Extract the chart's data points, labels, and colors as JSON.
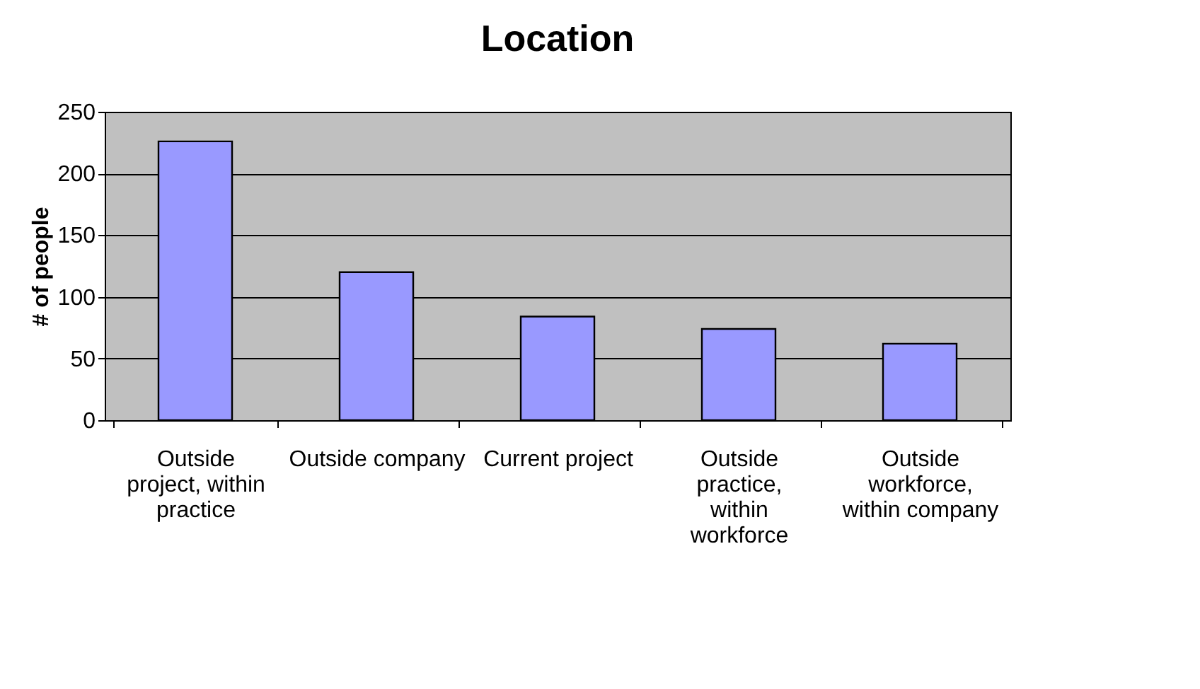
{
  "chart_data": {
    "type": "bar",
    "title": "Location",
    "ylabel": "# of people",
    "categories": [
      "Outside project, within practice",
      "Outside company",
      "Current project",
      "Outside practice, within workforce",
      "Outside workforce, within company"
    ],
    "values": [
      226,
      120,
      84,
      74,
      62
    ],
    "color": "#9999ff",
    "ylim": [
      0,
      250
    ],
    "yticks": [
      0,
      50,
      100,
      150,
      200,
      250
    ],
    "grid": "y"
  }
}
